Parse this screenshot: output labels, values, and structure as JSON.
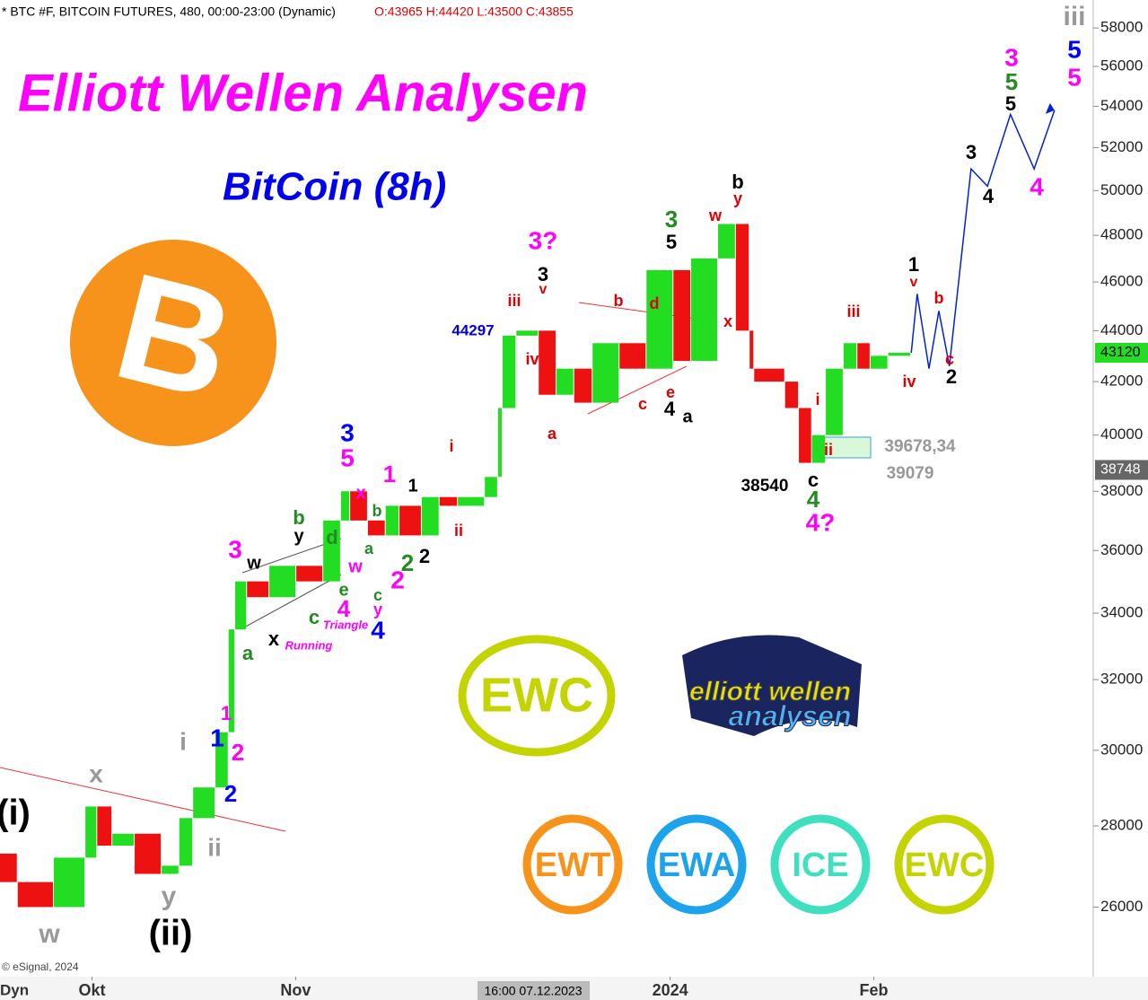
{
  "header": {
    "symbol": "* BTC #F, BITCOIN FUTURES, 480, 00:00-23:00 (Dynamic)",
    "ohlc": "O:43965 H:44420 L:43500 C:43855"
  },
  "title": "Elliott Wellen Analysen",
  "subtitle": "BitCoin (8h)",
  "copyright": "© eSignal, 2024",
  "corner": "Dyn",
  "cursor_time": "16:00 07.12.2023",
  "price_tags": [
    {
      "value": 43120,
      "label": "43120",
      "color": "#22dd22"
    },
    {
      "value": 38748,
      "label": "38748",
      "color": "#666666"
    }
  ],
  "logos": {
    "bitcoin": "B",
    "ewc": "EWC",
    "brand_top": "elliott wellen",
    "brand_bottom": "analysen",
    "row": [
      "EWT",
      "EWA",
      "ICE",
      "EWC"
    ]
  },
  "chart_data": {
    "type": "candle-line",
    "log_scale": true,
    "xlim": [
      0,
      166.4
    ],
    "xticks": [
      {
        "value": 14,
        "label": "Okt"
      },
      {
        "value": 45,
        "label": "Nov"
      },
      {
        "value": 102,
        "label": "2024"
      },
      {
        "value": 133,
        "label": "Feb"
      }
    ],
    "ylim": [
      24400,
      59500
    ],
    "yticks": [
      26000,
      28000,
      30000,
      32000,
      34000,
      36000,
      38000,
      40000,
      42000,
      44000,
      46000,
      48000,
      50000,
      52000,
      54000,
      56000,
      58000
    ],
    "series": [
      {
        "name": "BTC",
        "up_color": "#22dd22",
        "down_color": "#ee1111",
        "x": [
          0,
          2.7,
          8.2,
          13,
          14.8,
          17.1,
          20.5,
          24.6,
          27.3,
          29.4,
          32.8,
          34.8,
          35.8,
          37.6,
          41,
          45.1,
          49.2,
          51.9,
          53.3,
          56,
          58.7,
          60.8,
          64.2,
          66.9,
          69.7,
          73.8,
          75.8,
          76.5,
          78.6,
          82,
          84.7,
          87.4,
          90.2,
          94.3,
          98.4,
          102.5,
          105.2,
          109.3,
          112,
          114.1,
          114.8,
          119.5,
          121.6,
          123.6,
          125.7,
          128.4,
          130.5,
          132.5,
          135.2,
          138.7
        ],
        "values": [
          27300,
          26600,
          26000,
          27200,
          28500,
          27500,
          27800,
          26800,
          27000,
          28200,
          29000,
          30500,
          33500,
          35000,
          34500,
          35500,
          35000,
          37000,
          38000,
          37000,
          36500,
          37500,
          36500,
          37800,
          37500,
          37800,
          38500,
          41000,
          43800,
          44000,
          41500,
          42500,
          41200,
          43500,
          42500,
          46500,
          42800,
          47000,
          48500,
          44000,
          42500,
          42000,
          41000,
          39000,
          40000,
          42500,
          43500,
          42500,
          43000,
          43120
        ]
      },
      {
        "name": "Projection",
        "color": "#0022dd",
        "x": [
          138.7,
          139.6,
          141.4,
          142.9,
          144.5,
          147.8,
          150.3,
          153.8,
          157.4,
          160.5
        ],
        "values": [
          43120,
          45500,
          42500,
          44800,
          42600,
          51000,
          50200,
          53600,
          51000,
          53800
        ]
      }
    ],
    "annotations": [
      {
        "text": "(i)",
        "color": "#000000"
      },
      {
        "text": "w",
        "color": "#999999"
      },
      {
        "text": "x",
        "color": "#999999"
      },
      {
        "text": "y",
        "color": "#999999"
      },
      {
        "text": "(ii)",
        "color": "#000000"
      },
      {
        "text": "i",
        "color": "#999999"
      },
      {
        "text": "ii",
        "color": "#999999"
      },
      {
        "text": "1",
        "color": "#ff00ff"
      },
      {
        "text": "1",
        "color": "#0000ff"
      },
      {
        "text": "2",
        "color": "#ff00ff"
      },
      {
        "text": "2",
        "color": "#0000ff"
      },
      {
        "text": "a",
        "color": "#228b22"
      },
      {
        "text": "3",
        "color": "#ff00ff"
      },
      {
        "text": "w",
        "color": "#000000"
      },
      {
        "text": "x",
        "color": "#000000"
      },
      {
        "text": "Running",
        "color": "#ff00ff"
      },
      {
        "text": "y",
        "color": "#000000"
      },
      {
        "text": "b",
        "color": "#228b22"
      },
      {
        "text": "c",
        "color": "#228b22"
      },
      {
        "text": "Triangle",
        "color": "#ff00ff"
      },
      {
        "text": "d",
        "color": "#228b22"
      },
      {
        "text": "e",
        "color": "#228b22"
      },
      {
        "text": "4",
        "color": "#ff00ff"
      },
      {
        "text": "w",
        "color": "#ff00ff"
      },
      {
        "text": "3",
        "color": "#0000ff"
      },
      {
        "text": "5",
        "color": "#ff00ff"
      },
      {
        "text": "x",
        "color": "#ff00ff"
      },
      {
        "text": "b",
        "color": "#228b22"
      },
      {
        "text": "a",
        "color": "#228b22"
      },
      {
        "text": "c",
        "color": "#228b22"
      },
      {
        "text": "y",
        "color": "#ff00ff"
      },
      {
        "text": "4",
        "color": "#0000ff"
      },
      {
        "text": "1",
        "color": "#ff00ff"
      },
      {
        "text": "1",
        "color": "#000000"
      },
      {
        "text": "2",
        "color": "#ff00ff"
      },
      {
        "text": "2",
        "color": "#228b22"
      },
      {
        "text": "2",
        "color": "#000000"
      },
      {
        "text": "i",
        "color": "#dd0000"
      },
      {
        "text": "ii",
        "color": "#dd0000"
      },
      {
        "text": "44297",
        "color": "#0000dd"
      },
      {
        "text": "iii",
        "color": "#dd0000"
      },
      {
        "text": "iv",
        "color": "#dd0000"
      },
      {
        "text": "3",
        "color": "#000000"
      },
      {
        "text": "v",
        "color": "#dd0000"
      },
      {
        "text": "3?",
        "color": "#ff00ff"
      },
      {
        "text": "a",
        "color": "#dd0000"
      },
      {
        "text": "b",
        "color": "#dd0000"
      },
      {
        "text": "c",
        "color": "#dd0000"
      },
      {
        "text": "d",
        "color": "#dd0000"
      },
      {
        "text": "e",
        "color": "#dd0000"
      },
      {
        "text": "4",
        "color": "#000000"
      },
      {
        "text": "a",
        "color": "#000000"
      },
      {
        "text": "3",
        "color": "#228b22"
      },
      {
        "text": "5",
        "color": "#000000"
      },
      {
        "text": "w",
        "color": "#dd0000"
      },
      {
        "text": "x",
        "color": "#dd0000"
      },
      {
        "text": "b",
        "color": "#000000"
      },
      {
        "text": "y",
        "color": "#dd0000"
      },
      {
        "text": "38540",
        "color": "#000000"
      },
      {
        "text": "i",
        "color": "#dd0000"
      },
      {
        "text": "ii",
        "color": "#dd0000"
      },
      {
        "text": "c",
        "color": "#000000"
      },
      {
        "text": "4",
        "color": "#228b22"
      },
      {
        "text": "4?",
        "color": "#ff00ff"
      },
      {
        "text": "39678,34",
        "color": "#999999"
      },
      {
        "text": "39079",
        "color": "#999999"
      },
      {
        "text": "iii",
        "color": "#dd0000"
      },
      {
        "text": "iv",
        "color": "#dd0000"
      },
      {
        "text": "1",
        "color": "#000000"
      },
      {
        "text": "v",
        "color": "#dd0000"
      },
      {
        "text": "b",
        "color": "#dd0000"
      },
      {
        "text": "c",
        "color": "#dd0000"
      },
      {
        "text": "2",
        "color": "#000000"
      },
      {
        "text": "3",
        "color": "#000000"
      },
      {
        "text": "4",
        "color": "#000000"
      },
      {
        "text": "5",
        "color": "#000000"
      },
      {
        "text": "5",
        "color": "#228b22"
      },
      {
        "text": "3",
        "color": "#ff00ff"
      },
      {
        "text": "4",
        "color": "#ff00ff"
      },
      {
        "text": "5",
        "color": "#0000ff"
      },
      {
        "text": "5",
        "color": "#ff00ff"
      },
      {
        "text": "iii",
        "color": "#999999"
      }
    ]
  }
}
